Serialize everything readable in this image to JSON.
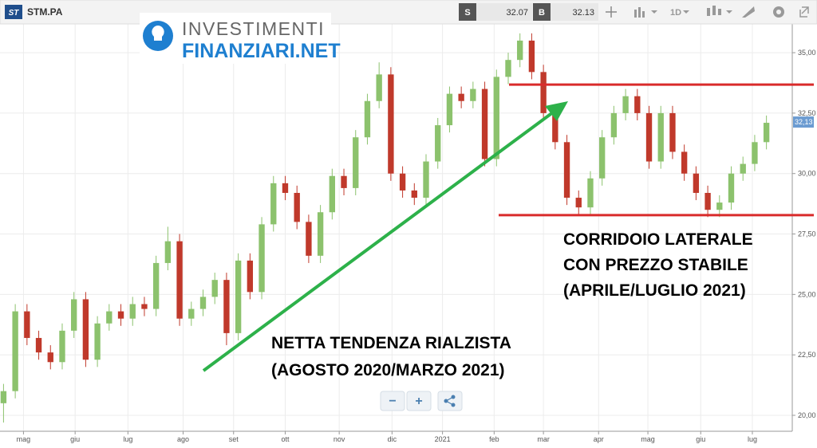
{
  "toolbar": {
    "logo": "ST",
    "symbol": "STM.PA",
    "sell_label": "S",
    "sell": "32.07",
    "buy_label": "B",
    "buy": "32.13",
    "interval": "1D"
  },
  "watermark": {
    "line1": "INVESTIMENTI",
    "line2": "FINANZIARI.NET"
  },
  "controls": {
    "zoom_out": "−",
    "zoom_in": "+"
  },
  "chart_data": {
    "type": "candlestick",
    "categories": [
      null,
      null,
      null,
      null,
      null,
      null,
      null,
      null,
      null,
      null,
      null,
      null,
      null,
      null,
      null,
      null,
      null,
      null,
      null,
      null,
      null,
      null,
      null,
      null,
      null,
      null,
      null,
      null,
      null,
      null,
      null,
      null,
      null,
      null,
      null,
      null,
      null,
      null,
      null,
      null,
      null,
      null,
      null,
      null,
      null,
      null,
      null,
      null,
      null,
      null,
      null,
      null,
      null,
      null,
      null,
      null,
      null,
      null,
      null,
      null,
      null,
      null,
      null,
      null,
      null,
      null
    ],
    "open": [
      20.5,
      21.0,
      24.3,
      23.2,
      22.6,
      22.2,
      23.5,
      24.8,
      22.3,
      23.8,
      24.3,
      24.0,
      24.6,
      24.4,
      26.3,
      27.2,
      24.0,
      24.4,
      24.9,
      25.6,
      23.4,
      26.4,
      25.1,
      27.9,
      29.6,
      29.2,
      28.0,
      26.6,
      28.4,
      29.9,
      29.4,
      31.5,
      33.0,
      34.1,
      30.0,
      29.3,
      29.0,
      30.5,
      32.0,
      33.3,
      33.0,
      33.5,
      30.6,
      34.0,
      34.7,
      35.5,
      34.2,
      32.5,
      31.3,
      29.0,
      28.6,
      29.8,
      31.5,
      32.5,
      33.2,
      32.5,
      30.5,
      32.5,
      30.9,
      30.0,
      29.2,
      28.5,
      28.8,
      30.0,
      30.4,
      31.3
    ],
    "high": [
      21.3,
      24.6,
      24.6,
      23.5,
      22.9,
      23.8,
      25.1,
      25.1,
      24.1,
      24.6,
      24.6,
      24.9,
      24.9,
      26.6,
      27.8,
      27.5,
      24.7,
      25.2,
      25.9,
      25.9,
      26.7,
      26.7,
      28.2,
      29.9,
      29.9,
      29.5,
      28.3,
      28.7,
      30.2,
      30.2,
      31.8,
      33.3,
      34.6,
      34.4,
      30.3,
      29.6,
      30.8,
      32.3,
      33.6,
      33.6,
      33.8,
      33.8,
      34.3,
      35.0,
      35.8,
      35.8,
      34.5,
      32.8,
      31.6,
      29.3,
      30.1,
      31.8,
      32.8,
      33.5,
      33.5,
      32.8,
      32.8,
      32.8,
      31.2,
      30.3,
      29.5,
      29.1,
      30.3,
      30.7,
      31.6,
      32.4
    ],
    "low": [
      19.7,
      20.7,
      22.9,
      22.3,
      21.9,
      21.9,
      23.2,
      22.0,
      22.0,
      23.5,
      23.7,
      23.7,
      24.1,
      24.1,
      26.0,
      23.7,
      23.7,
      24.1,
      24.6,
      22.9,
      23.1,
      24.8,
      24.8,
      27.6,
      28.9,
      27.7,
      26.3,
      26.3,
      28.1,
      29.1,
      29.1,
      31.2,
      32.7,
      29.7,
      29.0,
      28.7,
      28.7,
      30.2,
      31.7,
      32.7,
      32.7,
      30.3,
      30.3,
      33.7,
      34.4,
      33.9,
      32.2,
      31.0,
      28.7,
      28.3,
      28.3,
      29.5,
      31.2,
      32.2,
      32.2,
      30.2,
      30.2,
      30.6,
      29.7,
      28.9,
      28.2,
      28.2,
      28.5,
      29.7,
      30.1,
      31.0
    ],
    "close": [
      21.0,
      24.3,
      23.2,
      22.6,
      22.2,
      23.5,
      24.8,
      22.3,
      23.8,
      24.3,
      24.0,
      24.6,
      24.4,
      26.3,
      27.2,
      24.0,
      24.4,
      24.9,
      25.6,
      23.4,
      26.4,
      25.1,
      27.9,
      29.6,
      29.2,
      28.0,
      26.6,
      28.4,
      29.9,
      29.4,
      31.5,
      33.0,
      34.1,
      30.0,
      29.3,
      29.0,
      30.5,
      32.0,
      33.3,
      33.0,
      33.5,
      30.6,
      34.0,
      34.7,
      35.5,
      34.2,
      32.5,
      31.3,
      29.0,
      28.6,
      29.8,
      31.5,
      32.5,
      33.2,
      32.5,
      30.5,
      32.5,
      30.9,
      30.0,
      29.2,
      28.5,
      28.8,
      30.0,
      30.4,
      31.3,
      32.1
    ],
    "up_color": "#8cc26d",
    "down_color": "#c0392b",
    "xlim": [
      -0.3,
      67.2
    ],
    "xticks": [
      {
        "value": 1.7,
        "label": "mag"
      },
      {
        "value": 6.1,
        "label": "giu"
      },
      {
        "value": 10.6,
        "label": "lug"
      },
      {
        "value": 15.3,
        "label": "ago"
      },
      {
        "value": 19.6,
        "label": "set"
      },
      {
        "value": 24.0,
        "label": "ott"
      },
      {
        "value": 28.6,
        "label": "nov"
      },
      {
        "value": 33.1,
        "label": "dic"
      },
      {
        "value": 37.4,
        "label": "2021"
      },
      {
        "value": 41.8,
        "label": "feb"
      },
      {
        "value": 46.0,
        "label": "mar"
      },
      {
        "value": 50.7,
        "label": "apr"
      },
      {
        "value": 54.9,
        "label": "mag"
      },
      {
        "value": 59.4,
        "label": "giu"
      },
      {
        "value": 63.8,
        "label": "lug"
      }
    ],
    "ylim": [
      19.34,
      36.19
    ],
    "yticks": [
      {
        "value": 20,
        "label": "20,00"
      },
      {
        "value": 22.5,
        "label": "22,50"
      },
      {
        "value": 25,
        "label": "25,00"
      },
      {
        "value": 27.5,
        "label": "27,50"
      },
      {
        "value": 30,
        "label": "30,00"
      },
      {
        "value": 32.5,
        "label": "32,50"
      },
      {
        "value": 35,
        "label": "35,00"
      }
    ],
    "grid": true,
    "last_price": {
      "value": 32.13,
      "label": "32,13"
    },
    "levels": [
      33.68,
      28.28
    ],
    "level_color": "#d92b2b",
    "annotations": [
      "NETTA TENDENZA RIALZISTA",
      "(AGOSTO 2020/MARZO 2021)",
      "CORRIDOIO LATERALE",
      "CON PREZZO STABILE",
      "(APRILE/LUGLIO 2021)"
    ]
  }
}
